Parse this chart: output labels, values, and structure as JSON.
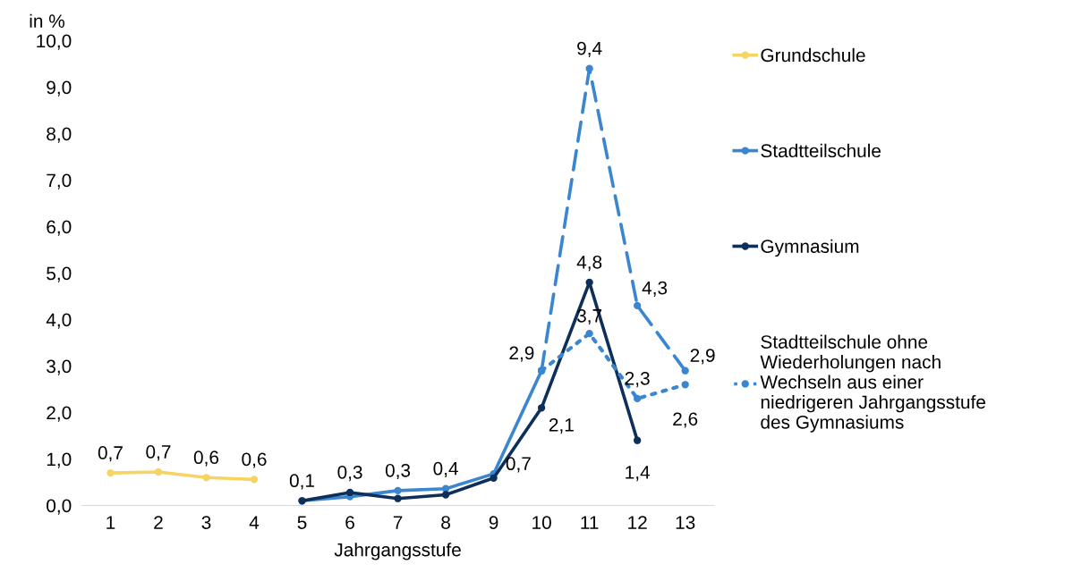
{
  "chart_data": {
    "type": "line",
    "ylabel": "in %",
    "xlabel": "Jahrgangsstufe",
    "categories": [
      "1",
      "2",
      "3",
      "4",
      "5",
      "6",
      "7",
      "8",
      "9",
      "10",
      "11",
      "12",
      "13"
    ],
    "ylim": [
      0,
      10
    ],
    "yticks": [
      {
        "value": 0,
        "label": "0,0"
      },
      {
        "value": 1,
        "label": "1,0"
      },
      {
        "value": 2,
        "label": "2,0"
      },
      {
        "value": 3,
        "label": "3,0"
      },
      {
        "value": 4,
        "label": "4,0"
      },
      {
        "value": 5,
        "label": "5,0"
      },
      {
        "value": 6,
        "label": "6,0"
      },
      {
        "value": 7,
        "label": "7,0"
      },
      {
        "value": 8,
        "label": "8,0"
      },
      {
        "value": 9,
        "label": "9,0"
      },
      {
        "value": 10,
        "label": "10,0"
      }
    ],
    "marker": "circle",
    "legend": "right",
    "series": [
      {
        "name": "Grundschule",
        "color": "#f5d461",
        "line_style": "solid",
        "values": [
          0.7,
          0.72,
          0.6,
          0.56,
          null,
          null,
          null,
          null,
          null,
          null,
          null,
          null,
          null
        ],
        "value_labels": [
          "0,7",
          "0,7",
          "0,6",
          "0,6",
          null,
          null,
          null,
          null,
          null,
          null,
          null,
          null,
          null
        ]
      },
      {
        "name": "Stadtteilschule",
        "color": "#3a86d0",
        "line_style": "solid",
        "values": [
          null,
          null,
          null,
          null,
          0.1,
          0.19,
          0.32,
          0.36,
          0.68,
          2.9,
          null,
          null,
          null
        ],
        "value_labels": [
          null,
          null,
          null,
          null,
          null,
          null,
          "0,3",
          "0,4",
          "0,7",
          "2,9",
          null,
          null,
          null
        ]
      },
      {
        "color": "#3a86d0",
        "line_style": "dashed",
        "values": [
          null,
          null,
          null,
          null,
          null,
          null,
          null,
          null,
          null,
          2.9,
          9.4,
          4.3,
          2.9
        ],
        "value_labels": [
          null,
          null,
          null,
          null,
          null,
          null,
          null,
          null,
          null,
          null,
          "9,4",
          "4,3",
          "2,9"
        ]
      },
      {
        "name": "Gymnasium",
        "color": "#0e2f5a",
        "line_style": "solid",
        "values": [
          null,
          null,
          null,
          null,
          0.1,
          0.28,
          0.15,
          0.23,
          0.59,
          2.1,
          4.8,
          1.4,
          null
        ],
        "value_labels": [
          null,
          null,
          null,
          null,
          "0,1",
          "0,3",
          null,
          null,
          null,
          "2,1",
          "4,8",
          "1,4",
          null
        ]
      },
      {
        "name": "Stadtteilschule ohne\nWiederholungen nach\nWechseln aus einer\nniedrigeren Jahrgangsstufe\ndes Gymnasiums",
        "color": "#3a86d0",
        "line_style": "dotted",
        "values": [
          null,
          null,
          null,
          null,
          null,
          null,
          null,
          null,
          null,
          2.9,
          3.7,
          2.3,
          2.6
        ],
        "value_labels": [
          null,
          null,
          null,
          null,
          null,
          null,
          null,
          null,
          null,
          null,
          "3,7",
          "2,3",
          "2,6"
        ]
      }
    ]
  }
}
